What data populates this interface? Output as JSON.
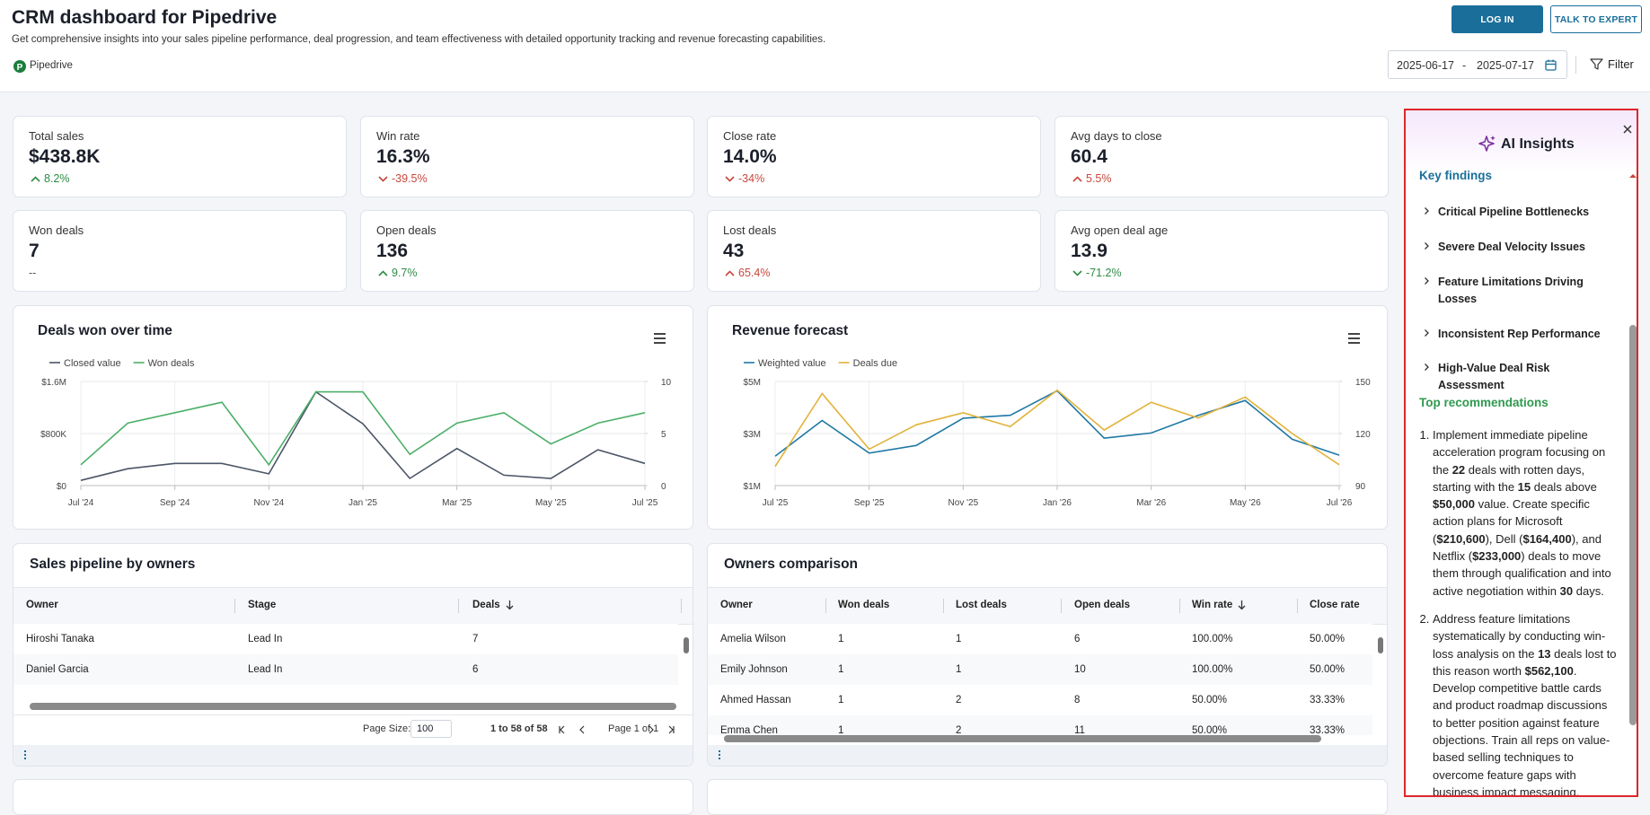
{
  "header": {
    "title": "CRM dashboard for Pipedrive",
    "subtitle": "Get comprehensive insights into your sales pipeline performance, deal progression, and team effectiveness with detailed opportunity tracking and revenue forecasting capabilities.",
    "brand": "Pipedrive",
    "buttons": [
      "LOG IN",
      "TALK TO EXPERT"
    ],
    "date_start": "2025-06-17",
    "date_separator": "-",
    "date_end": "2025-07-17",
    "filter": "Filter"
  },
  "kpis": [
    {
      "label": "Total sales",
      "value": "$438.8K",
      "change": "8.2%",
      "color": "#2e8b46"
    },
    {
      "label": "Win rate",
      "value": "16.3%",
      "change": "-39.5%",
      "color": "#c8463c"
    },
    {
      "label": "Close rate",
      "value": "14.0%",
      "change": "-34%",
      "color": "#c8463c"
    },
    {
      "label": "Avg days to close",
      "value": "60.4",
      "change": "5.5%",
      "color": "#c8463c"
    },
    {
      "label": "Won deals",
      "value": "7",
      "change": "--",
      "color": "#555555"
    },
    {
      "label": "Open deals",
      "value": "136",
      "change": "9.7%",
      "color": "#2e8b46"
    },
    {
      "label": "Lost deals",
      "value": "43",
      "change": "65.4%",
      "color": "#c8463c"
    },
    {
      "label": "Avg open deal age",
      "value": "13.9",
      "change": "-71.2%",
      "color": "#2e8b46"
    }
  ],
  "chart_data": [
    {
      "type": "line",
      "title": "Deals won over time",
      "categories": [
        "Jul '24",
        null,
        "Sep '24",
        null,
        "Nov '24",
        null,
        "Jan '25",
        null,
        "Mar '25",
        null,
        "May '25",
        null,
        "Jul '25"
      ],
      "series": [
        {
          "name": "Closed value",
          "color": "#4b5566",
          "values": [
            80000,
            260000,
            340000,
            340000,
            180000,
            1440000,
            950000,
            110000,
            570000,
            160000,
            110000,
            550000,
            340000
          ]
        },
        {
          "name": "Won deals",
          "color": "#4caf68",
          "axis": "y2",
          "values": [
            2,
            6,
            7,
            8,
            2,
            9,
            9,
            3,
            6,
            7,
            4,
            6,
            7
          ]
        }
      ],
      "ylim": [
        0,
        1600000
      ],
      "yticks": [
        {
          "value": 0,
          "label": "$0"
        },
        {
          "value": 800000,
          "label": "$800K"
        },
        {
          "value": 1600000,
          "label": "$1.6M"
        }
      ],
      "y2lim": [
        0,
        10
      ],
      "y2ticks": [
        0,
        5,
        10
      ],
      "grid": true
    },
    {
      "type": "line",
      "title": "Revenue forecast",
      "categories": [
        "Jul '25",
        null,
        "Sep '25",
        null,
        "Nov '25",
        null,
        "Jan '26",
        null,
        "Mar '26",
        null,
        "May '26",
        null,
        "Jul '26"
      ],
      "series": [
        {
          "name": "Weighted value",
          "color": "#1f78a4",
          "values": [
            2130000,
            3500000,
            2250000,
            2540000,
            3590000,
            3700000,
            4640000,
            2820000,
            3020000,
            3700000,
            4270000,
            2780000,
            2170000
          ]
        },
        {
          "name": "Deals due",
          "color": "#e2b23a",
          "axis": "y2",
          "values": [
            101,
            143,
            111,
            125,
            132,
            124,
            145,
            122,
            138,
            129,
            141,
            120,
            102
          ]
        }
      ],
      "ylim": [
        1000000,
        5000000
      ],
      "yticks": [
        {
          "value": 1000000,
          "label": "$1M"
        },
        {
          "value": 3000000,
          "label": "$3M"
        },
        {
          "value": 5000000,
          "label": "$5M"
        }
      ],
      "y2lim": [
        90,
        150
      ],
      "y2ticks": [
        90,
        120,
        150
      ],
      "grid": true
    }
  ],
  "tables": [
    {
      "title": "Sales pipeline by owners",
      "columns": [
        "Owner",
        "Stage",
        "Deals"
      ],
      "sorted_column": 2,
      "rows": [
        [
          "Hiroshi Tanaka",
          "Lead In",
          7
        ],
        [
          "Daniel Garcia",
          "Lead In",
          6
        ]
      ],
      "pagination": {
        "page_size_label": "Page Size:",
        "page_size": 100,
        "range": "1 to 58 of 58",
        "page": "Page 1 of 1"
      }
    },
    {
      "title": "Owners comparison",
      "columns": [
        "Owner",
        "Won deals",
        "Lost deals",
        "Open deals",
        "Win rate",
        "Close rate"
      ],
      "sorted_column": 4,
      "rows": [
        [
          "Amelia Wilson",
          1,
          1,
          6,
          "100.00%",
          "50.00%"
        ],
        [
          "Emily Johnson",
          1,
          1,
          10,
          "100.00%",
          "50.00%"
        ],
        [
          "Ahmed Hassan",
          1,
          2,
          8,
          "50.00%",
          "33.33%"
        ],
        [
          "Emma Chen",
          1,
          2,
          11,
          "50.00%",
          "33.33%"
        ]
      ]
    }
  ],
  "insights": {
    "title": "AI Insights",
    "findings_heading": "Key findings",
    "findings": [
      "Critical Pipeline Bottlenecks",
      "Severe Deal Velocity Issues",
      "Feature Limitations Driving Losses",
      "Inconsistent Rep Performance",
      "High-Value Deal Risk Assessment"
    ],
    "recommendations_heading": "Top recommendations",
    "recommendations": [
      [
        "Implement immediate pipeline acceleration program focusing on the ",
        "22",
        " deals with rotten days, starting with the ",
        "15",
        " deals above ",
        "$50,000",
        " value. Create specific action plans for Microsoft (",
        "$210,600",
        "), Dell (",
        "$164,400",
        "), and Netflix (",
        "$233,000",
        ") deals to move them through qualification and into active negotiation within ",
        "30",
        " days."
      ],
      [
        "Address feature limitations systematically by conducting win-loss analysis on the ",
        "13",
        " deals lost to this reason worth ",
        "$562,100",
        ". Develop competitive battle cards and product roadmap discussions to better position against feature objections. Train all reps on value-based selling techniques to overcome feature gaps with business impact messaging."
      ]
    ]
  }
}
